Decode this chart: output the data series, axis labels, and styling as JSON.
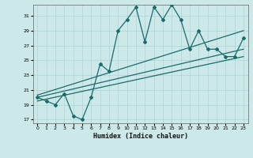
{
  "xlabel": "Humidex (Indice chaleur)",
  "xlim": [
    -0.5,
    23.5
  ],
  "ylim": [
    16.5,
    32.5
  ],
  "xticks": [
    0,
    1,
    2,
    3,
    4,
    5,
    6,
    7,
    8,
    9,
    10,
    11,
    12,
    13,
    14,
    15,
    16,
    17,
    18,
    19,
    20,
    21,
    22,
    23
  ],
  "yticks": [
    17,
    19,
    21,
    23,
    25,
    27,
    29,
    31
  ],
  "bg_color": "#cce8e8",
  "line_color": "#1a6b6b",
  "grid_color": "#aad4d4",
  "zigzag_x": [
    0,
    1,
    2,
    3,
    4,
    5,
    6,
    7,
    8,
    9,
    10,
    11,
    12,
    13,
    14,
    15,
    16,
    17,
    18,
    19,
    20,
    21,
    22,
    23
  ],
  "zigzag_y": [
    20.0,
    19.5,
    19.0,
    20.5,
    17.5,
    17.0,
    20.0,
    24.5,
    23.5,
    29.0,
    30.5,
    32.2,
    27.5,
    32.2,
    30.5,
    32.5,
    30.5,
    26.5,
    29.0,
    26.5,
    26.5,
    25.5,
    25.5,
    28.0
  ],
  "trend1_x": [
    0,
    23
  ],
  "trend1_y": [
    20.0,
    26.5
  ],
  "trend2_x": [
    0,
    23
  ],
  "trend2_y": [
    19.5,
    25.5
  ],
  "trend3_x": [
    0,
    23
  ],
  "trend3_y": [
    20.3,
    29.0
  ]
}
